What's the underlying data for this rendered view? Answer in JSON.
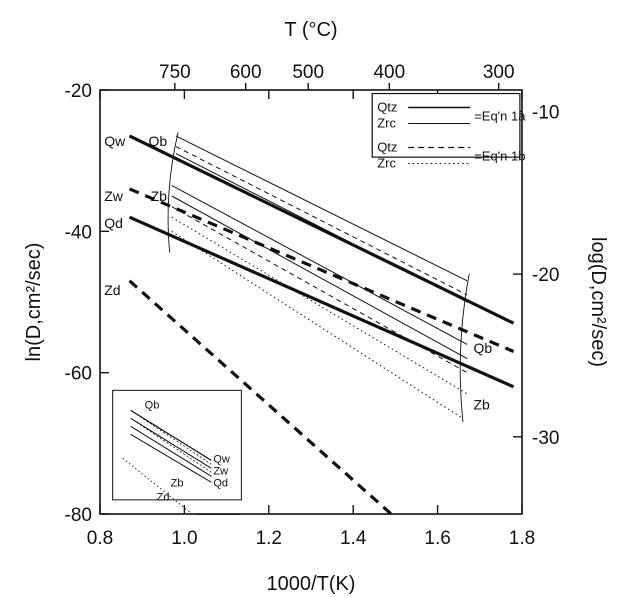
{
  "chart_data": {
    "type": "line",
    "xlabel": "1000/T(K)",
    "ylabel": "ln(D,cm²/sec)",
    "ylabel_right": "log(D,cm²/sec)",
    "xlabel_top": "T (°C)",
    "xlim": [
      0.8,
      1.8
    ],
    "ylim": [
      -80,
      -20
    ],
    "x_ticks": [
      0.8,
      1.0,
      1.2,
      1.4,
      1.6,
      1.8
    ],
    "x_tick_labels": [
      "0.8",
      "1.0",
      "1.2",
      "1.4",
      "1.6",
      "1.8"
    ],
    "y_ticks": [
      -20,
      -40,
      -60,
      -80
    ],
    "y_tick_labels": [
      "-20",
      "-40",
      "-60",
      "-80"
    ],
    "y_right_ticks": [
      -10,
      -20,
      -30
    ],
    "y_right_tick_labels": [
      "-10",
      "-20",
      "-30"
    ],
    "top_ticks": [
      750,
      600,
      500,
      400,
      300
    ],
    "top_tick_labels": [
      "750",
      "600",
      "500",
      "400",
      "300"
    ],
    "legend": {
      "placement": "top-right",
      "entries": [
        {
          "name": "Qtz",
          "style": "solid-thick",
          "group": "=Eq'n 1a"
        },
        {
          "name": "Zrc",
          "style": "solid-thin",
          "group": "=Eq'n 1a"
        },
        {
          "name": "Qtz",
          "style": "dashed",
          "group": "=Eq'n 1b"
        },
        {
          "name": "Zrc",
          "style": "dotted",
          "group": "=Eq'n 1b"
        }
      ],
      "group_labels": [
        "=Eq'n 1a",
        "=Eq'n 1b"
      ]
    },
    "series": [
      {
        "name": "Qw",
        "style": "solid-thick",
        "x": [
          0.87,
          1.78
        ],
        "y": [
          -26.5,
          -53
        ]
      },
      {
        "name": "Zw",
        "style": "dashed-thick",
        "x": [
          0.87,
          1.78
        ],
        "y": [
          -34,
          -57
        ]
      },
      {
        "name": "Qd",
        "style": "solid-thick",
        "x": [
          0.87,
          1.78
        ],
        "y": [
          -38,
          -62
        ]
      },
      {
        "name": "Zd",
        "style": "dashed-thick",
        "x": [
          0.87,
          1.49
        ],
        "y": [
          -47,
          -80
        ]
      }
    ],
    "band_lines": [
      {
        "style": "solid-thin",
        "x": [
          0.98,
          1.67
        ],
        "y": [
          -26.5,
          -47
        ]
      },
      {
        "style": "solid-thin",
        "x": [
          0.98,
          1.67
        ],
        "y": [
          -29,
          -50
        ]
      },
      {
        "style": "dashed-thin",
        "x": [
          0.98,
          1.67
        ],
        "y": [
          -28,
          -49
        ]
      },
      {
        "style": "solid-thin",
        "x": [
          0.97,
          1.67
        ],
        "y": [
          -33.5,
          -56
        ]
      },
      {
        "style": "solid-thin",
        "x": [
          0.97,
          1.67
        ],
        "y": [
          -35,
          -58
        ]
      },
      {
        "style": "dashed-thin",
        "x": [
          0.97,
          1.67
        ],
        "y": [
          -36.5,
          -60
        ]
      },
      {
        "style": "dotted",
        "x": [
          0.97,
          1.67
        ],
        "y": [
          -38,
          -63
        ]
      },
      {
        "style": "dotted",
        "x": [
          0.97,
          1.66
        ],
        "y": [
          -40,
          -66.5
        ]
      }
    ],
    "annotations": [
      "Qw",
      "Qb",
      "Zw",
      "Zb",
      "Qd",
      "Zd",
      "Qb",
      "Zb"
    ],
    "inset": {
      "labels": [
        "Qb",
        "Qw",
        "Zw",
        "Qd",
        "Zb",
        "Zd"
      ],
      "position": "bottom-left"
    }
  }
}
